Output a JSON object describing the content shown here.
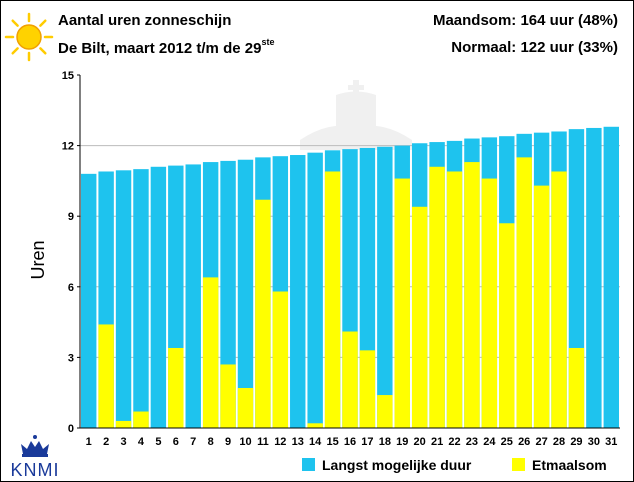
{
  "header": {
    "title": "Aantal uren zonneschijn",
    "subtitle_main": "De Bilt, maart 2012 t/m de 29",
    "subtitle_sup": "ste",
    "month_sum": "Maandsom: 164 uur (48%)",
    "normal": "Normaal: 122 uur (33%)"
  },
  "logo": {
    "text": "KNMI",
    "icon": "crown-icon"
  },
  "colors": {
    "possible": "#1ec3ee",
    "actual": "#ffff00",
    "grid": "#bbbbbb"
  },
  "chart_data": {
    "type": "bar",
    "ylabel": "Uren",
    "ylim": [
      0,
      15
    ],
    "yticks": [
      0,
      3,
      6,
      9,
      12,
      15
    ],
    "grid": "horizontal",
    "legend_position": "bottom-right",
    "categories": [
      "1",
      "2",
      "3",
      "4",
      "5",
      "6",
      "7",
      "8",
      "9",
      "10",
      "11",
      "12",
      "13",
      "14",
      "15",
      "16",
      "17",
      "18",
      "19",
      "20",
      "21",
      "22",
      "23",
      "24",
      "25",
      "26",
      "27",
      "28",
      "29",
      "30",
      "31"
    ],
    "series": [
      {
        "name": "Langst mogelijke duur",
        "values": [
          10.8,
          10.9,
          10.95,
          11.0,
          11.1,
          11.15,
          11.2,
          11.3,
          11.35,
          11.4,
          11.5,
          11.55,
          11.6,
          11.7,
          11.8,
          11.85,
          11.9,
          11.95,
          12.0,
          12.1,
          12.15,
          12.2,
          12.3,
          12.35,
          12.4,
          12.5,
          12.55,
          12.6,
          12.7,
          12.75,
          12.8
        ]
      },
      {
        "name": "Etmaalsom",
        "values": [
          0,
          4.4,
          0.3,
          0.7,
          0,
          3.4,
          0,
          6.4,
          2.7,
          1.7,
          9.7,
          5.8,
          0,
          0.2,
          10.9,
          4.1,
          3.3,
          1.4,
          10.6,
          9.4,
          11.1,
          10.9,
          11.3,
          10.6,
          8.7,
          11.5,
          10.3,
          10.9,
          3.4,
          null,
          null
        ]
      }
    ]
  }
}
